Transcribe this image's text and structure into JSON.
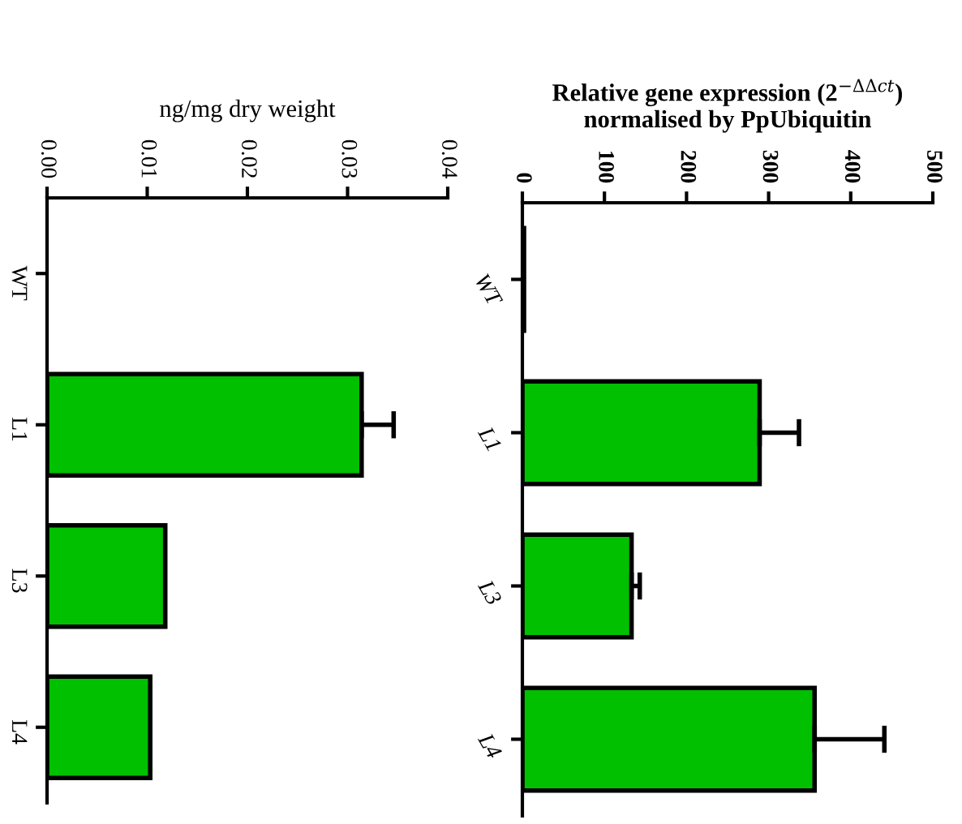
{
  "chart_data": [
    {
      "type": "bar",
      "orientation": "horizontal",
      "xlabel": "ng/mg dry weight",
      "categories": [
        "WT",
        "L1",
        "L3",
        "L4"
      ],
      "values": [
        null,
        0.0314,
        0.0118,
        0.0103
      ],
      "errors": [
        null,
        0.0032,
        null,
        null
      ],
      "color": "#00c000",
      "xlim": [
        0,
        0.04
      ],
      "xticks": [
        {
          "value": 0,
          "label": "0.00"
        },
        {
          "value": 0.01,
          "label": "0.01"
        },
        {
          "value": 0.02,
          "label": "0.02"
        },
        {
          "value": 0.03,
          "label": "0.03"
        },
        {
          "value": 0.04,
          "label": "0.04"
        }
      ]
    },
    {
      "type": "bar",
      "orientation": "horizontal",
      "xlabel": "Relative gene expression (2$^{−ΔΔct}$)\nnormalised by PpUbiquitin",
      "categories": [
        "WT",
        "L1",
        "L3",
        "L4"
      ],
      "values": [
        2,
        289,
        133,
        356
      ],
      "errors": [
        null,
        48,
        10,
        85
      ],
      "color": "#00c000",
      "xlim": [
        0,
        500
      ],
      "xticks": [
        0,
        100,
        200,
        300,
        400,
        500
      ]
    }
  ]
}
